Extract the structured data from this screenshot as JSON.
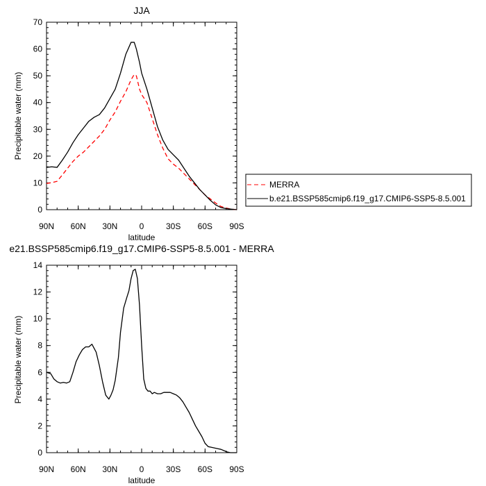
{
  "chart_data": [
    {
      "type": "line",
      "title": "JJA",
      "xlabel": "latitude",
      "ylabel": "Precipitable water (mm)",
      "xlim": [
        90,
        -90
      ],
      "ylim": [
        0,
        70
      ],
      "x_ticks": [
        90,
        60,
        30,
        0,
        -30,
        -60,
        -90
      ],
      "x_tick_labels": [
        "90N",
        "60N",
        "30N",
        "0",
        "30S",
        "60S",
        "90S"
      ],
      "y_ticks": [
        0,
        10,
        20,
        30,
        40,
        50,
        60,
        70
      ],
      "y_tick_labels": [
        "0",
        "10",
        "20",
        "30",
        "40",
        "50",
        "60",
        "70"
      ],
      "legend_placement": "right, outside plot",
      "series": [
        {
          "name": "MERRA",
          "color": "#ff0000",
          "dash": "dashed",
          "x": [
            90,
            85,
            80,
            75,
            70,
            65,
            60,
            55,
            50,
            45,
            40,
            35,
            30,
            25,
            20,
            15,
            10,
            7,
            5,
            2,
            0,
            -5,
            -10,
            -15,
            -20,
            -25,
            -30,
            -35,
            -40,
            -45,
            -50,
            -55,
            -60,
            -65,
            -70,
            -75,
            -80,
            -85,
            -90
          ],
          "y": [
            9.8,
            10.1,
            10.6,
            13,
            15.5,
            18,
            20,
            21.5,
            23.5,
            25.5,
            27.5,
            30,
            33.5,
            36.5,
            40.5,
            44,
            48.5,
            50.5,
            50,
            45,
            43,
            40,
            34,
            28,
            23,
            19,
            17,
            15.5,
            13.5,
            11.5,
            9.5,
            7.5,
            5.5,
            4,
            2.5,
            1.2,
            0.6,
            0.2,
            0
          ]
        },
        {
          "name": "b.e21.BSSP585cmip6.f19_g17.CMIP6-SSP5-8.5.001",
          "color": "#000000",
          "dash": "solid",
          "x": [
            90,
            85,
            80,
            75,
            70,
            65,
            60,
            55,
            50,
            45,
            40,
            35,
            30,
            25,
            20,
            15,
            10,
            7,
            5,
            2,
            0,
            -5,
            -10,
            -15,
            -20,
            -25,
            -30,
            -35,
            -40,
            -45,
            -50,
            -55,
            -60,
            -65,
            -70,
            -75,
            -80,
            -85,
            -90
          ],
          "y": [
            15.8,
            16,
            15.8,
            18.5,
            21.5,
            25,
            28,
            30.5,
            33,
            34.5,
            35.5,
            38,
            41.5,
            45,
            51,
            58,
            62.5,
            62.5,
            60,
            55,
            51,
            45,
            38,
            31,
            26,
            22.5,
            20.5,
            18.5,
            15.5,
            12.5,
            10,
            7.5,
            5.5,
            3.5,
            1.8,
            0.8,
            0.4,
            0.2,
            0
          ]
        }
      ]
    },
    {
      "type": "line",
      "title": "e21.BSSP585cmip6.f19_g17.CMIP6-SSP5-8.5.001 - MERRA",
      "xlabel": "latitude",
      "ylabel": "Precipitable water (mm)",
      "xlim": [
        90,
        -90
      ],
      "ylim": [
        0,
        14
      ],
      "x_ticks": [
        90,
        60,
        30,
        0,
        -30,
        -60,
        -90
      ],
      "x_tick_labels": [
        "90N",
        "60N",
        "30N",
        "0",
        "30S",
        "60S",
        "90S"
      ],
      "y_ticks": [
        0,
        2,
        4,
        6,
        8,
        10,
        12,
        14
      ],
      "y_tick_labels": [
        "0",
        "2",
        "4",
        "6",
        "8",
        "10",
        "12",
        "14"
      ],
      "series": [
        {
          "color": "#000000",
          "dash": "solid",
          "x": [
            90,
            86,
            83,
            80,
            77,
            74,
            71,
            68,
            65,
            62,
            59,
            56,
            53,
            50,
            47,
            45,
            43,
            40,
            37,
            34,
            31,
            29,
            27,
            25,
            22,
            20,
            17,
            14,
            12,
            10,
            8,
            6,
            4,
            2,
            0,
            -2,
            -4,
            -6,
            -8,
            -10,
            -12,
            -15,
            -18,
            -21,
            -24,
            -27,
            -30,
            -33,
            -36,
            -39,
            -42,
            -45,
            -48,
            -51,
            -54,
            -57,
            -60,
            -63,
            -66,
            -69,
            -72,
            -75,
            -78,
            -81,
            -84,
            -87,
            -90
          ],
          "y": [
            6,
            5.9,
            5.5,
            5.3,
            5.2,
            5.25,
            5.2,
            5.3,
            6,
            6.8,
            7.3,
            7.7,
            7.9,
            7.9,
            8.1,
            7.8,
            7.5,
            6.5,
            5.3,
            4.3,
            4.0,
            4.3,
            4.7,
            5.4,
            7.1,
            9.0,
            10.8,
            11.6,
            12.1,
            13.0,
            13.6,
            13.7,
            13.0,
            11.0,
            8.0,
            5.5,
            4.8,
            4.6,
            4.6,
            4.4,
            4.5,
            4.4,
            4.4,
            4.5,
            4.5,
            4.5,
            4.4,
            4.3,
            4.1,
            3.8,
            3.4,
            3.0,
            2.5,
            2.0,
            1.6,
            1.2,
            0.7,
            0.45,
            0.4,
            0.35,
            0.3,
            0.25,
            0.15,
            0.05,
            0.0,
            0.0,
            0.0
          ]
        }
      ]
    }
  ]
}
